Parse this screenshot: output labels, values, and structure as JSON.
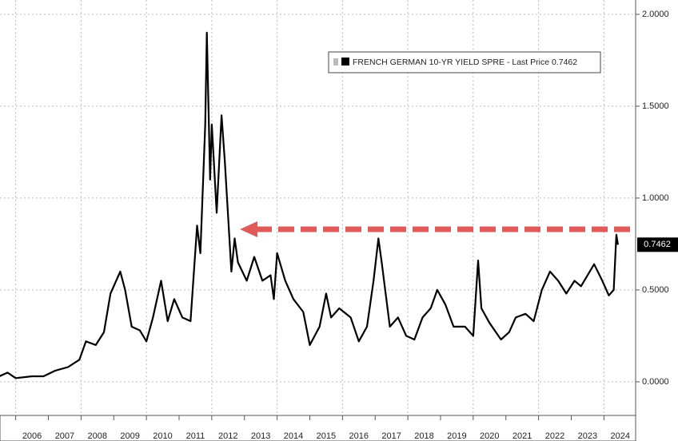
{
  "chart_data": {
    "type": "line",
    "series": [
      {
        "name": "FRENCH GERMAN 10-YR YIELD SPRE",
        "color": "#000000",
        "x": [
          2005.5,
          2005.75,
          2006.0,
          2006.5,
          2006.85,
          2007.2,
          2007.6,
          2007.95,
          2008.15,
          2008.45,
          2008.7,
          2008.9,
          2009.2,
          2009.35,
          2009.55,
          2009.8,
          2010.0,
          2010.2,
          2010.45,
          2010.65,
          2010.85,
          2011.1,
          2011.35,
          2011.55,
          2011.65,
          2011.8,
          2011.85,
          2011.95,
          2012.0,
          2012.15,
          2012.3,
          2012.4,
          2012.6,
          2012.7,
          2012.8,
          2013.07,
          2013.3,
          2013.55,
          2013.8,
          2013.9,
          2014.0,
          2014.25,
          2014.5,
          2014.8,
          2015.0,
          2015.3,
          2015.5,
          2015.65,
          2015.9,
          2016.25,
          2016.5,
          2016.75,
          2016.95,
          2017.1,
          2017.2,
          2017.45,
          2017.7,
          2017.95,
          2018.2,
          2018.45,
          2018.7,
          2018.9,
          2019.15,
          2019.4,
          2019.75,
          2020.0,
          2020.15,
          2020.25,
          2020.5,
          2020.85,
          2021.1,
          2021.3,
          2021.6,
          2021.85,
          2022.1,
          2022.35,
          2022.6,
          2022.85,
          2023.1,
          2023.3,
          2023.7,
          2023.95,
          2024.15,
          2024.3,
          2024.38,
          2024.43
        ],
        "values": [
          0.03,
          0.05,
          0.02,
          0.03,
          0.03,
          0.06,
          0.08,
          0.12,
          0.22,
          0.2,
          0.27,
          0.48,
          0.6,
          0.5,
          0.3,
          0.28,
          0.22,
          0.35,
          0.55,
          0.33,
          0.45,
          0.35,
          0.33,
          0.85,
          0.7,
          1.4,
          1.9,
          1.1,
          1.4,
          0.92,
          1.45,
          1.2,
          0.6,
          0.78,
          0.65,
          0.55,
          0.68,
          0.55,
          0.58,
          0.45,
          0.7,
          0.55,
          0.45,
          0.38,
          0.2,
          0.3,
          0.48,
          0.35,
          0.4,
          0.35,
          0.22,
          0.3,
          0.55,
          0.78,
          0.65,
          0.3,
          0.35,
          0.25,
          0.23,
          0.35,
          0.4,
          0.5,
          0.42,
          0.3,
          0.3,
          0.25,
          0.66,
          0.4,
          0.32,
          0.23,
          0.27,
          0.35,
          0.37,
          0.33,
          0.5,
          0.6,
          0.55,
          0.48,
          0.55,
          0.52,
          0.64,
          0.55,
          0.47,
          0.5,
          0.8,
          0.7462
        ]
      }
    ],
    "last_price_label": "- Last Price",
    "last_price": 0.7462,
    "xlim": [
      2005.52,
      2024.97
    ],
    "xticks": [
      {
        "value": 2006.5,
        "label": "2006"
      },
      {
        "value": 2007.5,
        "label": "2007"
      },
      {
        "value": 2008.5,
        "label": "2008"
      },
      {
        "value": 2009.5,
        "label": "2009"
      },
      {
        "value": 2010.5,
        "label": "2010"
      },
      {
        "value": 2011.5,
        "label": "2011"
      },
      {
        "value": 2012.5,
        "label": "2012"
      },
      {
        "value": 2013.5,
        "label": "2013"
      },
      {
        "value": 2014.5,
        "label": "2014"
      },
      {
        "value": 2015.5,
        "label": "2015"
      },
      {
        "value": 2016.5,
        "label": "2016"
      },
      {
        "value": 2017.5,
        "label": "2017"
      },
      {
        "value": 2018.5,
        "label": "2018"
      },
      {
        "value": 2019.5,
        "label": "2019"
      },
      {
        "value": 2020.5,
        "label": "2020"
      },
      {
        "value": 2021.5,
        "label": "2021"
      },
      {
        "value": 2022.5,
        "label": "2022"
      },
      {
        "value": 2023.5,
        "label": "2023"
      },
      {
        "value": 2024.5,
        "label": "2024"
      }
    ],
    "ylim": [
      -0.183,
      2.078
    ],
    "yticks": [
      {
        "value": 0,
        "label": "0.0000"
      },
      {
        "value": 0.5,
        "label": "0.5000"
      },
      {
        "value": 1,
        "label": "1.0000"
      },
      {
        "value": 1.5,
        "label": "1.5000"
      },
      {
        "value": 2,
        "label": "2.0000"
      }
    ],
    "grid": true
  }
}
